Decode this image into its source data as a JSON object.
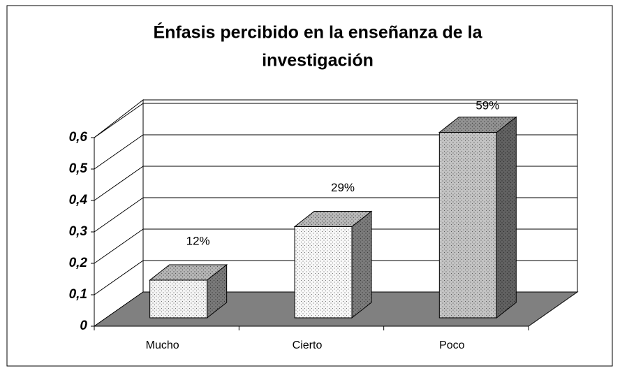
{
  "chart_data": {
    "type": "bar3d",
    "title": [
      "Énfasis percibido en la enseñanza de la",
      "investigación"
    ],
    "categories": [
      "Mucho",
      "Cierto",
      "Poco"
    ],
    "values": [
      0.12,
      0.29,
      0.59
    ],
    "value_labels": [
      "12%",
      "29%",
      "59%"
    ],
    "colors": [
      "#f4f4f4",
      "#f8f8f8",
      "#c4c4c4"
    ],
    "ylim": [
      0,
      0.6
    ],
    "yticks": [
      0,
      {
        "value": 0.1,
        "label": "0,1"
      },
      {
        "value": 0.2,
        "label": "0,2"
      },
      {
        "value": 0.3,
        "label": "0,3"
      },
      {
        "value": 0.4,
        "label": "0,4"
      },
      {
        "value": 0.5,
        "label": "0,5"
      },
      {
        "value": 0.6,
        "label": "0,6"
      }
    ],
    "grid": true
  }
}
